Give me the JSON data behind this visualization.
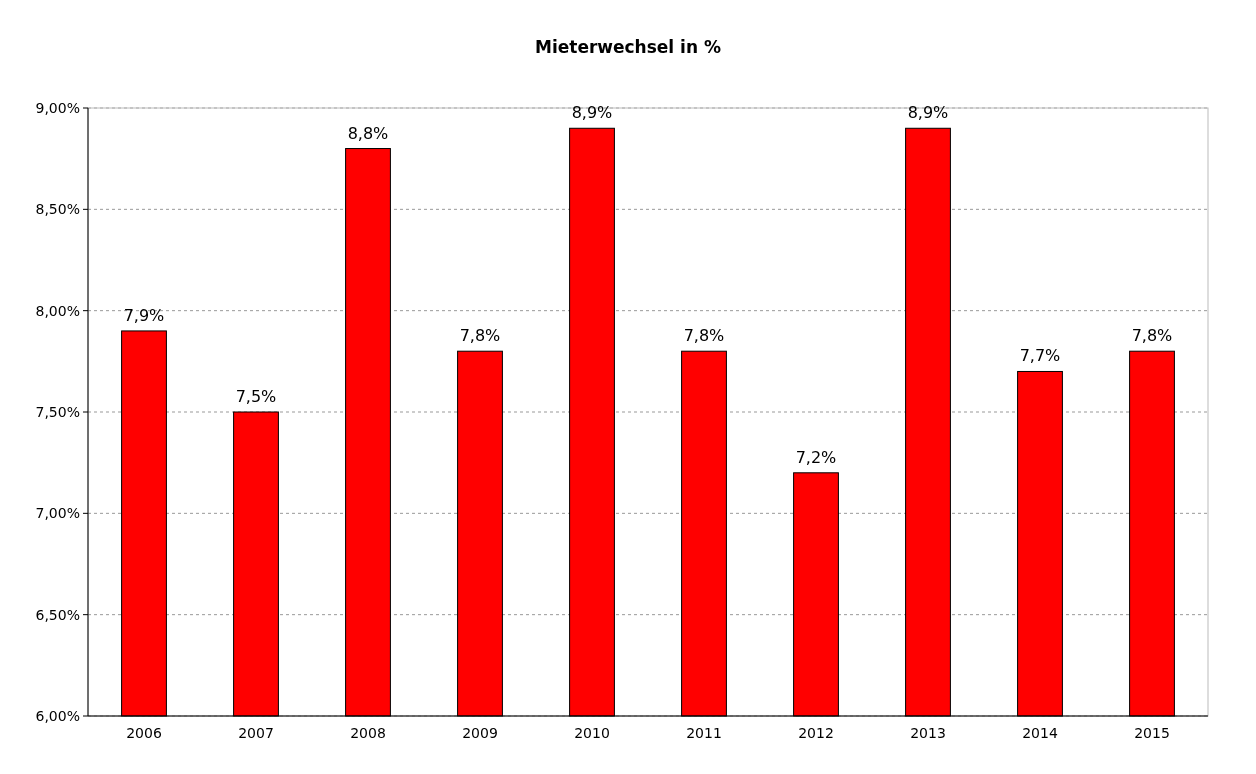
{
  "chart_data": {
    "type": "bar",
    "title": "Mieterwechsel in %",
    "categories": [
      "2006",
      "2007",
      "2008",
      "2009",
      "2010",
      "2011",
      "2012",
      "2013",
      "2014",
      "2015"
    ],
    "values": [
      7.9,
      7.5,
      8.8,
      7.8,
      8.9,
      7.8,
      7.2,
      8.9,
      7.7,
      7.8
    ],
    "value_labels": [
      "7,9%",
      "7,5%",
      "8,8%",
      "7,8%",
      "8,9%",
      "7,8%",
      "7,2%",
      "8,9%",
      "7,7%",
      "7,8%"
    ],
    "color": "#ff0000",
    "ylim": [
      6,
      9
    ],
    "yticks": [
      {
        "value": 6,
        "label": "6,00%"
      },
      {
        "value": 6.5,
        "label": "6,50%"
      },
      {
        "value": 7,
        "label": "7,00%"
      },
      {
        "value": 7.5,
        "label": "7,50%"
      },
      {
        "value": 8,
        "label": "8,00%"
      },
      {
        "value": 8.5,
        "label": "8,50%"
      },
      {
        "value": 9,
        "label": "9,00%"
      }
    ],
    "grid": "y"
  }
}
